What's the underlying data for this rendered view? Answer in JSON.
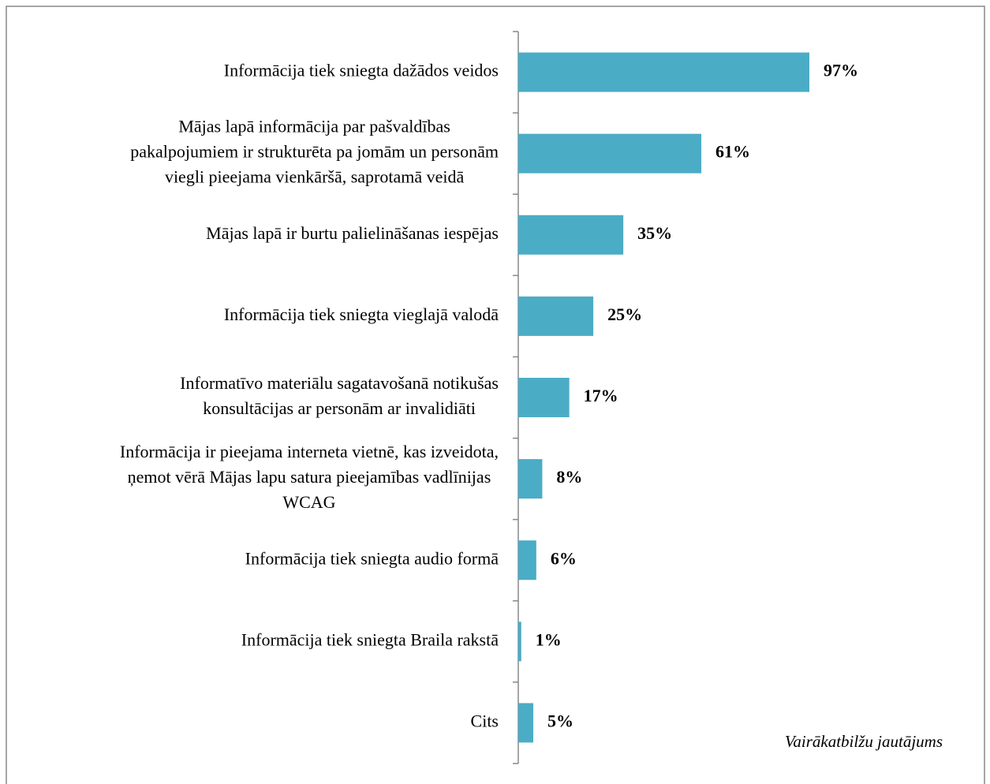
{
  "chart_data": {
    "type": "bar",
    "orientation": "horizontal",
    "categories": [
      [
        "Informācija tiek sniegta dažādos veidos"
      ],
      [
        "Mājas lapā informācija par pašvaldības",
        "pakalpojumiem ir strukturēta pa jomām un personām",
        "viegli pieejama vienkāršā, saprotamā veidā"
      ],
      [
        "Mājas lapā ir burtu palielināšanas iespējas"
      ],
      [
        "Informācija tiek sniegta vieglajā valodā"
      ],
      [
        "Informatīvo materiālu sagatavošanā notikušas",
        "konsultācijas ar personām ar invalidiāti"
      ],
      [
        "Informācija ir pieejama interneta vietnē, kas izveidota,",
        "ņemot vērā Mājas lapu satura pieejamības vadlīnijas",
        "WCAG"
      ],
      [
        "Informācija tiek sniegta audio formā"
      ],
      [
        "Informācija tiek sniegta Braila rakstā"
      ],
      [
        "Cits"
      ]
    ],
    "values": [
      97,
      61,
      35,
      25,
      17,
      8,
      6,
      1,
      5
    ],
    "value_labels": [
      "97%",
      "61%",
      "35%",
      "25%",
      "17%",
      "8%",
      "6%",
      "1%",
      "5%"
    ],
    "color": "#4bacc6",
    "annotation": "Vairākatbilžu jautājums"
  }
}
